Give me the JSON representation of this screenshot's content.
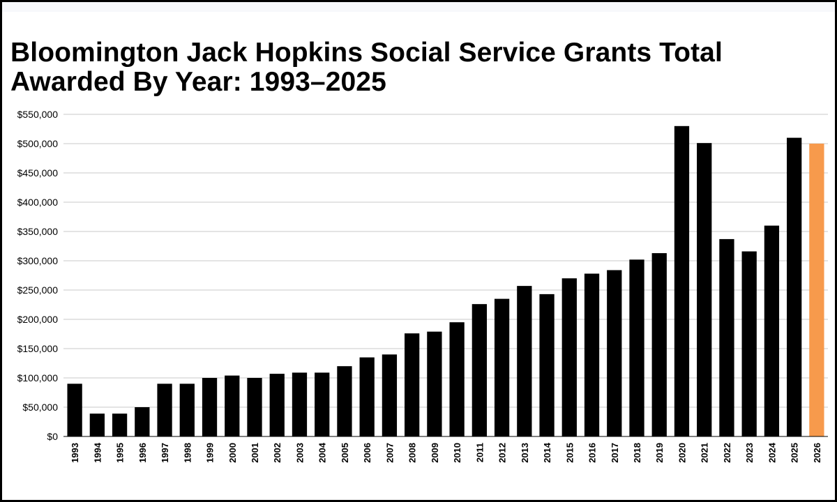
{
  "chart_data": {
    "type": "bar",
    "title_lines": [
      "Bloomington Jack Hopkins Social Service Grants Total",
      "Awarded By Year: 1993–2025"
    ],
    "xlabel": "",
    "ylabel": "",
    "ylim": [
      0,
      550000
    ],
    "yticks": [
      0,
      50000,
      100000,
      150000,
      200000,
      250000,
      300000,
      350000,
      400000,
      450000,
      500000,
      550000
    ],
    "ytick_labels": [
      "$0",
      "$50,000",
      "$100,000",
      "$150,000",
      "$200,000",
      "$250,000",
      "$300,000",
      "$350,000",
      "$400,000",
      "$450,000",
      "$500,000",
      "$550,000"
    ],
    "grid": true,
    "categories": [
      "1993",
      "1994",
      "1995",
      "1996",
      "1997",
      "1998",
      "1999",
      "2000",
      "2001",
      "2002",
      "2003",
      "2004",
      "2005",
      "2006",
      "2007",
      "2008",
      "2009",
      "2010",
      "2011",
      "2012",
      "2013",
      "2014",
      "2015",
      "2016",
      "2017",
      "2018",
      "2019",
      "2020",
      "2021",
      "2022",
      "2023",
      "2024",
      "2025",
      "2026"
    ],
    "values": [
      90000,
      39000,
      39000,
      50000,
      90000,
      90000,
      100000,
      104000,
      100000,
      107000,
      109000,
      109000,
      120000,
      135000,
      140000,
      176000,
      179000,
      195000,
      226000,
      235000,
      257000,
      243000,
      270000,
      278000,
      284000,
      302000,
      313000,
      530000,
      501000,
      337000,
      316000,
      360000,
      510000,
      500000
    ],
    "colors": {
      "bar": "#000000",
      "highlight": "#f79a4c",
      "grid": "#c8c8c8"
    },
    "highlight_categories": [
      "2026"
    ]
  }
}
